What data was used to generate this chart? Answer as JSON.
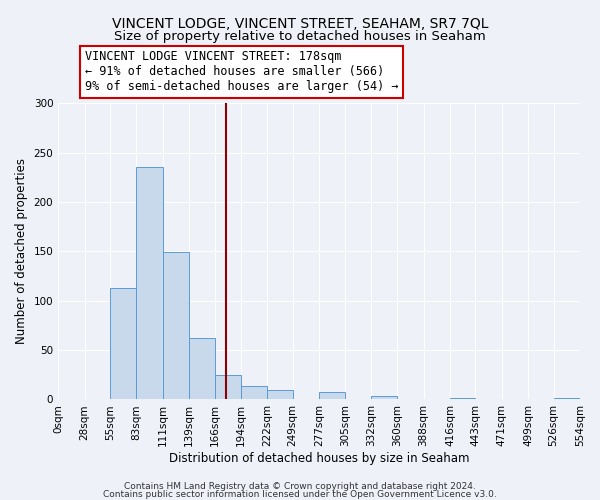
{
  "title": "VINCENT LODGE, VINCENT STREET, SEAHAM, SR7 7QL",
  "subtitle": "Size of property relative to detached houses in Seaham",
  "xlabel": "Distribution of detached houses by size in Seaham",
  "ylabel": "Number of detached properties",
  "bin_edges": [
    0,
    28,
    55,
    83,
    111,
    139,
    166,
    194,
    222,
    249,
    277,
    305,
    332,
    360,
    388,
    416,
    443,
    471,
    499,
    526,
    554
  ],
  "bin_labels": [
    "0sqm",
    "28sqm",
    "55sqm",
    "83sqm",
    "111sqm",
    "139sqm",
    "166sqm",
    "194sqm",
    "222sqm",
    "249sqm",
    "277sqm",
    "305sqm",
    "332sqm",
    "360sqm",
    "388sqm",
    "416sqm",
    "443sqm",
    "471sqm",
    "499sqm",
    "526sqm",
    "554sqm"
  ],
  "counts": [
    0,
    0,
    113,
    235,
    149,
    62,
    25,
    14,
    10,
    0,
    8,
    0,
    3,
    0,
    0,
    1,
    0,
    0,
    0,
    1
  ],
  "bar_color": "#c9d9ec",
  "bar_edge_color": "#5b9bd5",
  "property_size": 178,
  "vline_color": "#8b0000",
  "annotation_text": "VINCENT LODGE VINCENT STREET: 178sqm\n← 91% of detached houses are smaller (566)\n9% of semi-detached houses are larger (54) →",
  "annotation_box_color": "white",
  "annotation_box_edge_color": "#cc0000",
  "ylim": [
    0,
    300
  ],
  "yticks": [
    0,
    50,
    100,
    150,
    200,
    250,
    300
  ],
  "footer_line1": "Contains HM Land Registry data © Crown copyright and database right 2024.",
  "footer_line2": "Contains public sector information licensed under the Open Government Licence v3.0.",
  "bg_color": "#eef2f8",
  "title_fontsize": 10,
  "subtitle_fontsize": 9.5,
  "axis_label_fontsize": 8.5,
  "tick_fontsize": 7.5,
  "annotation_fontsize": 8.5,
  "footer_fontsize": 6.5
}
